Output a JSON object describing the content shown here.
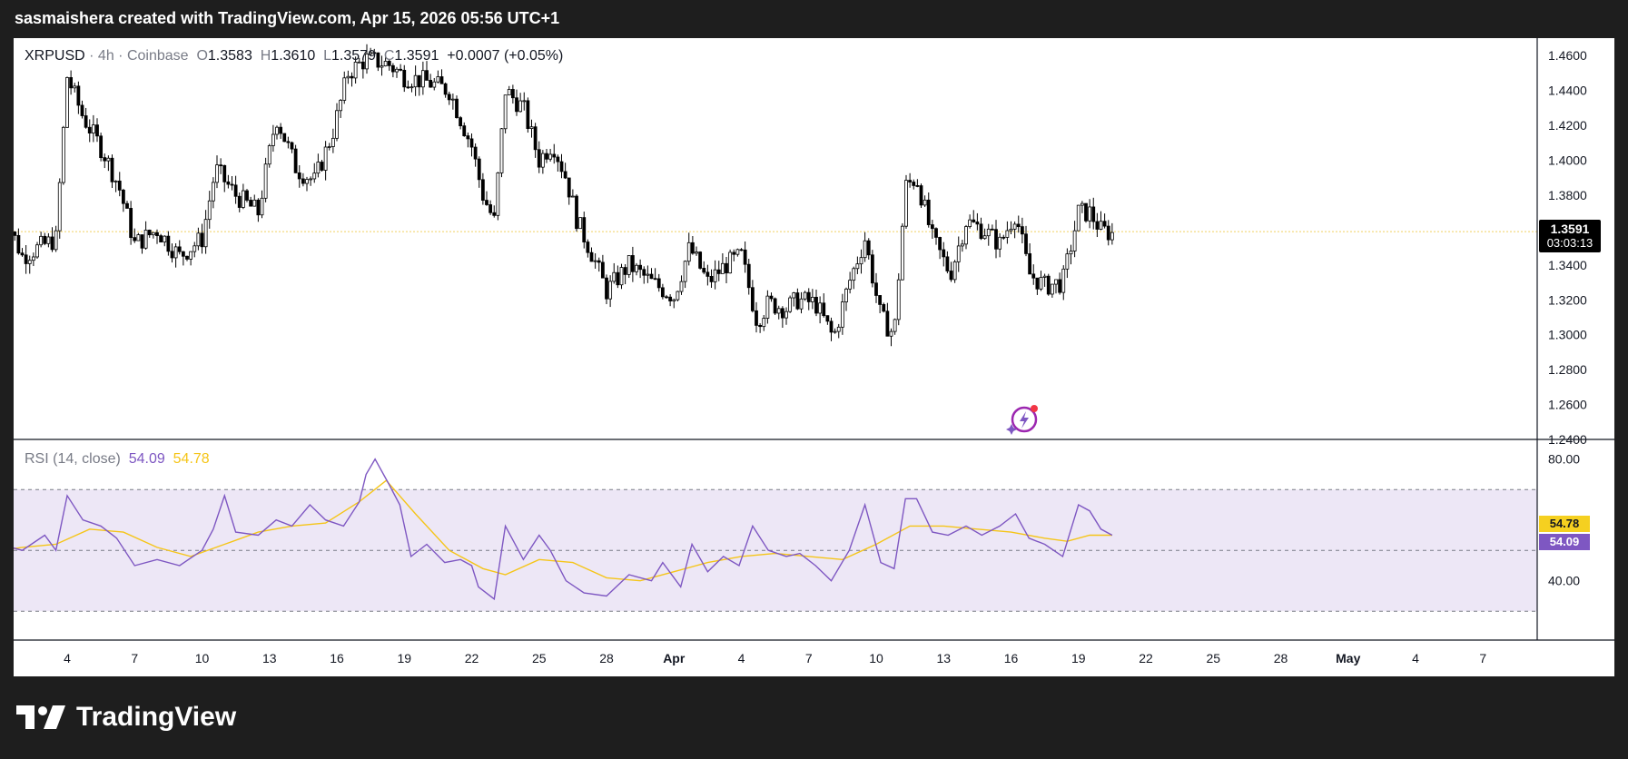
{
  "header": {
    "attribution": "sasmaishera created with TradingView.com, Apr 15, 2026 05:56 UTC+1"
  },
  "legend": {
    "symbol": "XRPUSD",
    "interval": "4h",
    "exchange": "Coinbase",
    "open_label": "O",
    "open": "1.3583",
    "high_label": "H",
    "high": "1.3610",
    "low_label": "L",
    "low": "1.3579",
    "close_label": "C",
    "close": "1.3591",
    "change": "+0.0007 (+0.05%)"
  },
  "last_price": {
    "price": "1.3591",
    "countdown": "03:03:13"
  },
  "rsi_legend": {
    "label": "RSI (14, close)",
    "rsi": "54.09",
    "ma": "54.78"
  },
  "footer": {
    "brand": "TradingView"
  },
  "colors": {
    "candle": "#000000",
    "rsi_line": "#7e57c2",
    "rsi_ma": "#f5c518",
    "rsi_band": "#ede7f6",
    "price_line": "#f0d060",
    "last_price_bg": "#000000"
  },
  "icons": [
    "tradingview-logo-icon",
    "ai-assistant-icon"
  ],
  "chart_data": [
    {
      "type": "candlestick",
      "title": "XRPUSD · 4h · Coinbase",
      "y_axis": {
        "ticks": [
          "1.4600",
          "1.4400",
          "1.4200",
          "1.4000",
          "1.3800",
          "1.3600",
          "1.3400",
          "1.3200",
          "1.3000",
          "1.2800",
          "1.2600",
          "1.2400"
        ],
        "ylim": [
          1.24,
          1.47
        ],
        "position": "right"
      },
      "x_axis": {
        "ticks": [
          "4",
          "7",
          "10",
          "13",
          "16",
          "19",
          "22",
          "25",
          "28",
          "Apr",
          "4",
          "7",
          "10",
          "13",
          "16",
          "19",
          "22",
          "25",
          "28",
          "May",
          "4",
          "7"
        ]
      },
      "close_path": [
        [
          1.0,
          1.375
        ],
        [
          2.0,
          1.345
        ],
        [
          3.5,
          1.355
        ],
        [
          4.0,
          1.448
        ],
        [
          4.7,
          1.425
        ],
        [
          5.6,
          1.405
        ],
        [
          6.3,
          1.385
        ],
        [
          7.0,
          1.352
        ],
        [
          8.0,
          1.36
        ],
        [
          9.0,
          1.345
        ],
        [
          10.0,
          1.355
        ],
        [
          10.6,
          1.395
        ],
        [
          11.5,
          1.38
        ],
        [
          12.5,
          1.37
        ],
        [
          13.3,
          1.425
        ],
        [
          14.2,
          1.395
        ],
        [
          15.0,
          1.388
        ],
        [
          15.8,
          1.415
        ],
        [
          16.5,
          1.45
        ],
        [
          17.3,
          1.458
        ],
        [
          18.3,
          1.455
        ],
        [
          19.0,
          1.448
        ],
        [
          20.0,
          1.445
        ],
        [
          21.0,
          1.44
        ],
        [
          22.0,
          1.408
        ],
        [
          22.5,
          1.38
        ],
        [
          23.0,
          1.365
        ],
        [
          23.5,
          1.44
        ],
        [
          24.3,
          1.43
        ],
        [
          25.0,
          1.4
        ],
        [
          25.6,
          1.41
        ],
        [
          26.2,
          1.39
        ],
        [
          26.7,
          1.365
        ],
        [
          27.4,
          1.345
        ],
        [
          28.0,
          1.325
        ],
        [
          29.0,
          1.34
        ],
        [
          30.0,
          1.33
        ],
        [
          31.0,
          1.322
        ],
        [
          31.7,
          1.35
        ],
        [
          32.5,
          1.33
        ],
        [
          33.3,
          1.34
        ],
        [
          34.0,
          1.345
        ],
        [
          34.7,
          1.308
        ],
        [
          35.2,
          1.318
        ],
        [
          36.0,
          1.315
        ],
        [
          36.5,
          1.32
        ],
        [
          37.3,
          1.318
        ],
        [
          38.1,
          1.298
        ],
        [
          38.8,
          1.33
        ],
        [
          39.5,
          1.355
        ],
        [
          40.2,
          1.31
        ],
        [
          40.8,
          1.3
        ],
        [
          41.3,
          1.385
        ],
        [
          41.8,
          1.39
        ],
        [
          42.5,
          1.355
        ],
        [
          43.3,
          1.335
        ],
        [
          44.0,
          1.365
        ],
        [
          44.8,
          1.36
        ],
        [
          45.5,
          1.352
        ],
        [
          46.2,
          1.37
        ],
        [
          46.8,
          1.335
        ],
        [
          47.5,
          1.328
        ],
        [
          48.3,
          1.33
        ],
        [
          49.0,
          1.37
        ],
        [
          49.5,
          1.37
        ],
        [
          50.0,
          1.36
        ],
        [
          50.5,
          1.358
        ]
      ]
    },
    {
      "type": "line",
      "title": "RSI (14, close)",
      "y_axis": {
        "ticks": [
          "80.00",
          "40.00"
        ],
        "ylim": [
          22,
          85
        ],
        "bands": [
          30,
          50,
          70
        ]
      },
      "series": [
        {
          "name": "RSI",
          "values": [
            [
              1.0,
              52
            ],
            [
              2.0,
              50
            ],
            [
              3.0,
              55
            ],
            [
              3.5,
              50
            ],
            [
              4.0,
              68
            ],
            [
              4.7,
              60
            ],
            [
              5.5,
              58
            ],
            [
              6.2,
              54
            ],
            [
              7.0,
              45
            ],
            [
              8.0,
              47
            ],
            [
              9.0,
              45
            ],
            [
              10.0,
              50
            ],
            [
              10.5,
              57
            ],
            [
              11.0,
              68
            ],
            [
              11.5,
              56
            ],
            [
              12.5,
              55
            ],
            [
              13.3,
              60
            ],
            [
              14.0,
              58
            ],
            [
              14.8,
              65
            ],
            [
              15.5,
              60
            ],
            [
              16.3,
              58
            ],
            [
              17.0,
              66
            ],
            [
              17.3,
              75
            ],
            [
              17.7,
              80
            ],
            [
              18.3,
              72
            ],
            [
              18.8,
              65
            ],
            [
              19.3,
              48
            ],
            [
              20.0,
              52
            ],
            [
              20.8,
              46
            ],
            [
              21.5,
              47
            ],
            [
              22.0,
              45
            ],
            [
              22.3,
              38
            ],
            [
              23.0,
              34
            ],
            [
              23.5,
              58
            ],
            [
              24.3,
              47
            ],
            [
              25.0,
              55
            ],
            [
              25.5,
              50
            ],
            [
              26.2,
              40
            ],
            [
              27.0,
              36
            ],
            [
              28.0,
              35
            ],
            [
              29.0,
              42
            ],
            [
              30.0,
              40
            ],
            [
              30.5,
              46
            ],
            [
              31.3,
              38
            ],
            [
              31.8,
              52
            ],
            [
              32.5,
              43
            ],
            [
              33.2,
              48
            ],
            [
              33.9,
              45
            ],
            [
              34.5,
              58
            ],
            [
              35.2,
              50
            ],
            [
              36.0,
              48
            ],
            [
              36.6,
              49
            ],
            [
              37.3,
              45
            ],
            [
              38.0,
              40
            ],
            [
              38.8,
              50
            ],
            [
              39.5,
              65
            ],
            [
              40.2,
              46
            ],
            [
              40.8,
              44
            ],
            [
              41.3,
              67
            ],
            [
              41.8,
              67
            ],
            [
              42.5,
              56
            ],
            [
              43.2,
              55
            ],
            [
              44.0,
              58
            ],
            [
              44.7,
              55
            ],
            [
              45.5,
              58
            ],
            [
              46.2,
              62
            ],
            [
              46.8,
              54
            ],
            [
              47.5,
              52
            ],
            [
              48.3,
              48
            ],
            [
              49.0,
              65
            ],
            [
              49.5,
              63
            ],
            [
              50.0,
              57
            ],
            [
              50.5,
              55
            ]
          ]
        },
        {
          "name": "RSI-based MA",
          "values": [
            [
              1.0,
              50
            ],
            [
              2.0,
              51
            ],
            [
              3.5,
              52
            ],
            [
              5.0,
              57
            ],
            [
              6.5,
              56
            ],
            [
              8.0,
              51
            ],
            [
              9.5,
              48
            ],
            [
              11.0,
              52
            ],
            [
              12.5,
              56
            ],
            [
              14.0,
              58
            ],
            [
              15.5,
              59
            ],
            [
              17.0,
              66
            ],
            [
              18.2,
              73
            ],
            [
              19.5,
              62
            ],
            [
              21.0,
              50
            ],
            [
              22.5,
              44
            ],
            [
              23.5,
              42
            ],
            [
              25.0,
              47
            ],
            [
              26.5,
              46
            ],
            [
              28.0,
              41
            ],
            [
              29.5,
              40
            ],
            [
              31.0,
              43
            ],
            [
              32.5,
              46
            ],
            [
              34.0,
              48
            ],
            [
              35.5,
              49
            ],
            [
              37.0,
              48
            ],
            [
              38.5,
              47
            ],
            [
              40.0,
              52
            ],
            [
              41.5,
              58
            ],
            [
              43.0,
              58
            ],
            [
              44.5,
              57
            ],
            [
              46.0,
              56
            ],
            [
              47.5,
              54
            ],
            [
              48.5,
              53
            ],
            [
              49.5,
              55
            ],
            [
              50.5,
              55
            ]
          ]
        }
      ]
    }
  ]
}
